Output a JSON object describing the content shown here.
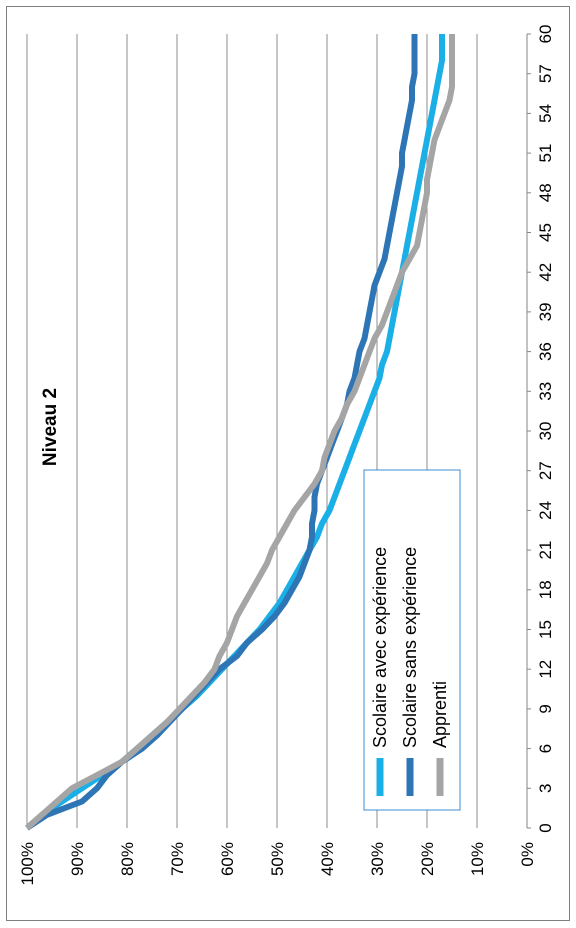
{
  "chart_data": {
    "type": "line",
    "title": "Niveau  2",
    "orientation": "rotated-90-clockwise",
    "xlabel": "",
    "ylabel": "",
    "x_ticks": [
      0,
      3,
      6,
      9,
      12,
      15,
      18,
      21,
      24,
      27,
      30,
      33,
      36,
      39,
      42,
      45,
      48,
      51,
      54,
      57,
      60
    ],
    "xlim": [
      0,
      60
    ],
    "y_ticks": [
      "0%",
      "10%",
      "20%",
      "30%",
      "40%",
      "50%",
      "60%",
      "70%",
      "80%",
      "90%",
      "100%"
    ],
    "ylim": [
      0,
      1
    ],
    "grid": "horizontal",
    "legend_position": "center-right",
    "series": [
      {
        "name": "Scolaire avec expérience",
        "color": "#1AAFE6",
        "points": [
          [
            0,
            1.0
          ],
          [
            1,
            0.97
          ],
          [
            2,
            0.93
          ],
          [
            3,
            0.89
          ],
          [
            4,
            0.85
          ],
          [
            5,
            0.81
          ],
          [
            6,
            0.78
          ],
          [
            7,
            0.75
          ],
          [
            8,
            0.72
          ],
          [
            9,
            0.69
          ],
          [
            10,
            0.66
          ],
          [
            11,
            0.635
          ],
          [
            12,
            0.61
          ],
          [
            13,
            0.585
          ],
          [
            14,
            0.56
          ],
          [
            15,
            0.535
          ],
          [
            16,
            0.515
          ],
          [
            17,
            0.495
          ],
          [
            18,
            0.48
          ],
          [
            19,
            0.465
          ],
          [
            20,
            0.45
          ],
          [
            21,
            0.435
          ],
          [
            22,
            0.42
          ],
          [
            23,
            0.41
          ],
          [
            24,
            0.395
          ],
          [
            25,
            0.385
          ],
          [
            26,
            0.375
          ],
          [
            27,
            0.365
          ],
          [
            28,
            0.355
          ],
          [
            29,
            0.345
          ],
          [
            30,
            0.335
          ],
          [
            31,
            0.325
          ],
          [
            32,
            0.315
          ],
          [
            33,
            0.305
          ],
          [
            34,
            0.295
          ],
          [
            35,
            0.29
          ],
          [
            36,
            0.28
          ],
          [
            37,
            0.275
          ],
          [
            38,
            0.27
          ],
          [
            39,
            0.265
          ],
          [
            40,
            0.26
          ],
          [
            41,
            0.255
          ],
          [
            42,
            0.25
          ],
          [
            43,
            0.245
          ],
          [
            44,
            0.24
          ],
          [
            45,
            0.235
          ],
          [
            46,
            0.23
          ],
          [
            47,
            0.225
          ],
          [
            48,
            0.22
          ],
          [
            49,
            0.215
          ],
          [
            50,
            0.21
          ],
          [
            51,
            0.205
          ],
          [
            52,
            0.2
          ],
          [
            53,
            0.195
          ],
          [
            54,
            0.19
          ],
          [
            55,
            0.185
          ],
          [
            56,
            0.18
          ],
          [
            57,
            0.175
          ],
          [
            58,
            0.17
          ],
          [
            59,
            0.17
          ],
          [
            60,
            0.17
          ]
        ]
      },
      {
        "name": "Scolaire sans expérience",
        "color": "#2E75B6",
        "points": [
          [
            0,
            1.0
          ],
          [
            1,
            0.96
          ],
          [
            2,
            0.89
          ],
          [
            3,
            0.86
          ],
          [
            4,
            0.84
          ],
          [
            5,
            0.81
          ],
          [
            6,
            0.77
          ],
          [
            7,
            0.74
          ],
          [
            8,
            0.715
          ],
          [
            9,
            0.69
          ],
          [
            10,
            0.665
          ],
          [
            11,
            0.64
          ],
          [
            12,
            0.615
          ],
          [
            13,
            0.58
          ],
          [
            14,
            0.56
          ],
          [
            15,
            0.53
          ],
          [
            16,
            0.505
          ],
          [
            17,
            0.485
          ],
          [
            18,
            0.47
          ],
          [
            19,
            0.455
          ],
          [
            20,
            0.445
          ],
          [
            21,
            0.435
          ],
          [
            22,
            0.43
          ],
          [
            23,
            0.43
          ],
          [
            24,
            0.425
          ],
          [
            25,
            0.425
          ],
          [
            26,
            0.42
          ],
          [
            27,
            0.41
          ],
          [
            28,
            0.4
          ],
          [
            29,
            0.39
          ],
          [
            30,
            0.38
          ],
          [
            31,
            0.37
          ],
          [
            32,
            0.36
          ],
          [
            33,
            0.355
          ],
          [
            34,
            0.345
          ],
          [
            35,
            0.34
          ],
          [
            36,
            0.335
          ],
          [
            37,
            0.325
          ],
          [
            38,
            0.32
          ],
          [
            39,
            0.315
          ],
          [
            40,
            0.31
          ],
          [
            41,
            0.305
          ],
          [
            42,
            0.295
          ],
          [
            43,
            0.285
          ],
          [
            44,
            0.28
          ],
          [
            45,
            0.275
          ],
          [
            46,
            0.27
          ],
          [
            47,
            0.265
          ],
          [
            48,
            0.26
          ],
          [
            49,
            0.255
          ],
          [
            50,
            0.25
          ],
          [
            51,
            0.25
          ],
          [
            52,
            0.245
          ],
          [
            53,
            0.24
          ],
          [
            54,
            0.235
          ],
          [
            55,
            0.23
          ],
          [
            56,
            0.23
          ],
          [
            57,
            0.225
          ],
          [
            58,
            0.225
          ],
          [
            59,
            0.225
          ],
          [
            60,
            0.225
          ]
        ]
      },
      {
        "name": "Apprenti",
        "color": "#A5A5A5",
        "points": [
          [
            0,
            1.0
          ],
          [
            1,
            0.97
          ],
          [
            2,
            0.94
          ],
          [
            3,
            0.91
          ],
          [
            4,
            0.86
          ],
          [
            5,
            0.81
          ],
          [
            6,
            0.78
          ],
          [
            7,
            0.75
          ],
          [
            8,
            0.72
          ],
          [
            9,
            0.695
          ],
          [
            10,
            0.67
          ],
          [
            11,
            0.645
          ],
          [
            12,
            0.625
          ],
          [
            13,
            0.615
          ],
          [
            14,
            0.6
          ],
          [
            15,
            0.59
          ],
          [
            16,
            0.58
          ],
          [
            17,
            0.565
          ],
          [
            18,
            0.55
          ],
          [
            19,
            0.535
          ],
          [
            20,
            0.52
          ],
          [
            21,
            0.51
          ],
          [
            22,
            0.495
          ],
          [
            23,
            0.48
          ],
          [
            24,
            0.465
          ],
          [
            25,
            0.445
          ],
          [
            26,
            0.425
          ],
          [
            27,
            0.41
          ],
          [
            28,
            0.405
          ],
          [
            29,
            0.395
          ],
          [
            30,
            0.385
          ],
          [
            31,
            0.37
          ],
          [
            32,
            0.36
          ],
          [
            33,
            0.345
          ],
          [
            34,
            0.335
          ],
          [
            35,
            0.325
          ],
          [
            36,
            0.315
          ],
          [
            37,
            0.305
          ],
          [
            38,
            0.29
          ],
          [
            39,
            0.28
          ],
          [
            40,
            0.27
          ],
          [
            41,
            0.26
          ],
          [
            42,
            0.25
          ],
          [
            43,
            0.235
          ],
          [
            44,
            0.22
          ],
          [
            45,
            0.215
          ],
          [
            46,
            0.21
          ],
          [
            47,
            0.205
          ],
          [
            48,
            0.2
          ],
          [
            49,
            0.2
          ],
          [
            50,
            0.195
          ],
          [
            51,
            0.19
          ],
          [
            52,
            0.185
          ],
          [
            53,
            0.175
          ],
          [
            54,
            0.165
          ],
          [
            55,
            0.155
          ],
          [
            56,
            0.15
          ],
          [
            57,
            0.15
          ],
          [
            58,
            0.15
          ],
          [
            59,
            0.15
          ],
          [
            60,
            0.15
          ]
        ]
      }
    ]
  }
}
